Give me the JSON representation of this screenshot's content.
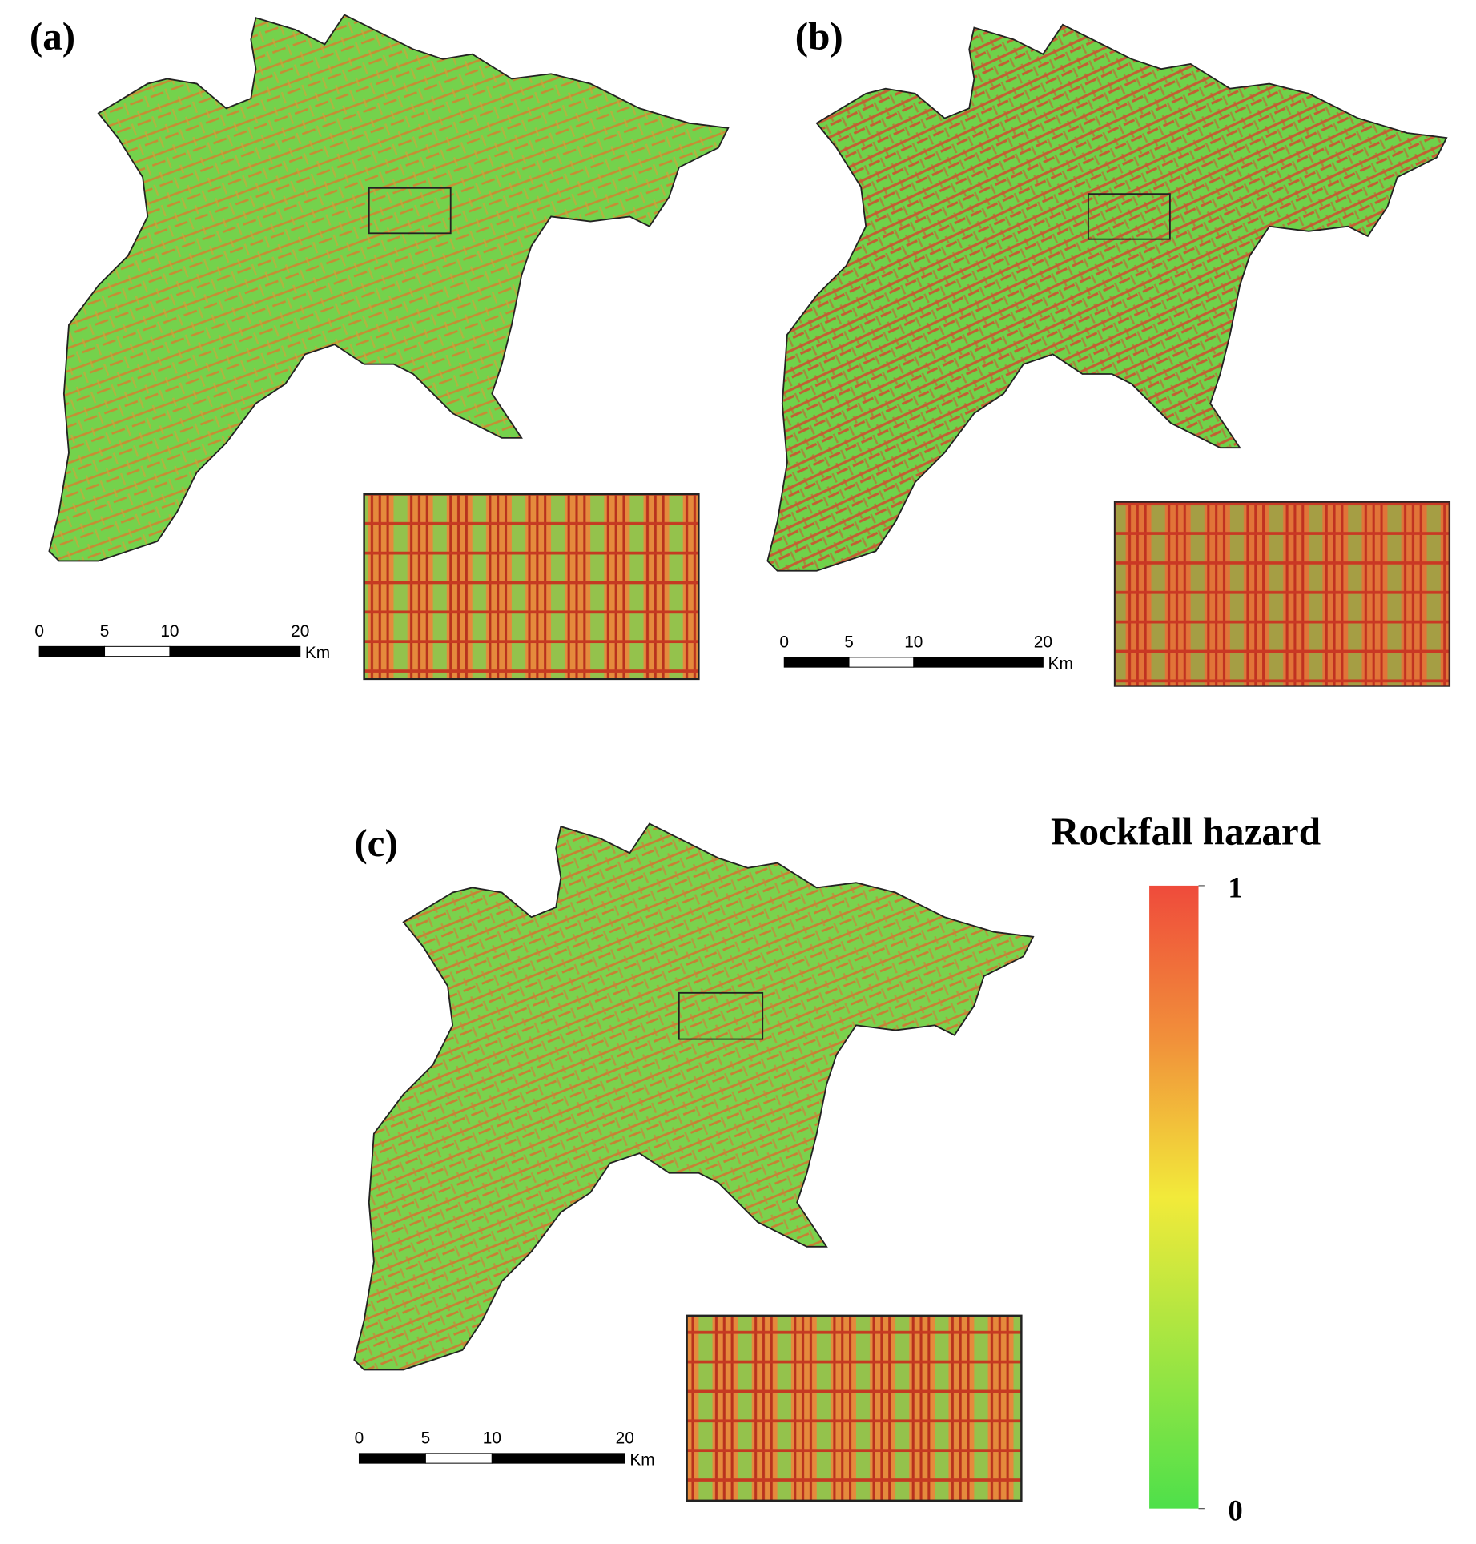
{
  "panels": [
    {
      "label": "(a)",
      "scale_bar": {
        "ticks": [
          0,
          5,
          10,
          20
        ],
        "unit": "Km"
      }
    },
    {
      "label": "(b)",
      "scale_bar": {
        "ticks": [
          0,
          5,
          10,
          20
        ],
        "unit": "Km"
      }
    },
    {
      "label": "(c)",
      "scale_bar": {
        "ticks": [
          0,
          5,
          10,
          20
        ],
        "unit": "Km"
      }
    }
  ],
  "legend": {
    "title": "Rockfall hazard",
    "ticks": [
      0,
      1
    ]
  }
}
